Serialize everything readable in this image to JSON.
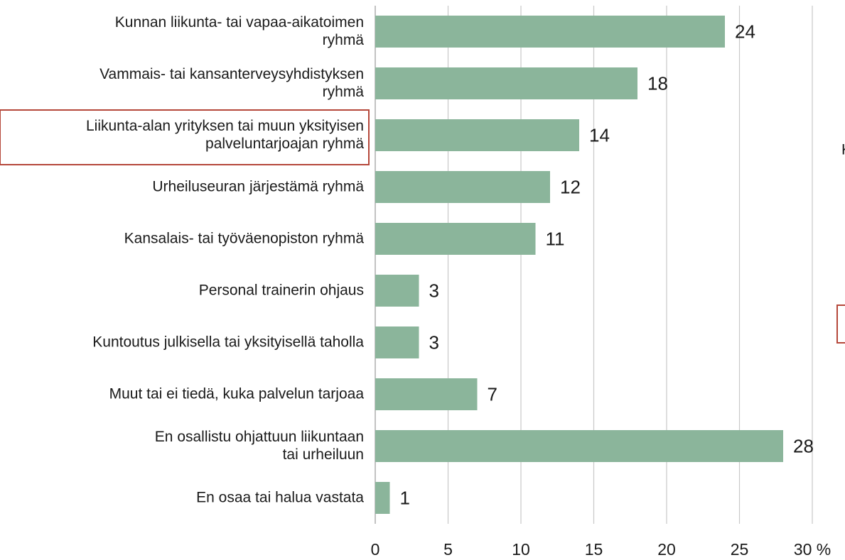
{
  "chart_data": {
    "type": "bar",
    "orientation": "horizontal",
    "categories": [
      "Kunnan liikunta- tai vapaa-aikatoimen\nryhmä",
      "Vammais- tai kansanterveysyhdistyksen\nryhmä",
      "Liikunta-alan yrityksen tai muun yksityisen\npalveluntarjoajan ryhmä",
      "Urheiluseuran järjestämä ryhmä",
      "Kansalais- tai työväenopiston ryhmä",
      "Personal trainerin ohjaus",
      "Kuntoutus julkisella tai yksityisellä taholla",
      "Muut tai ei tiedä, kuka palvelun tarjoaa",
      "En osallistu ohjattuun liikuntaan\ntai urheiluun",
      "En osaa tai halua vastata"
    ],
    "values": [
      24,
      18,
      14,
      12,
      11,
      3,
      3,
      7,
      28,
      1
    ],
    "color": "#8bb59b",
    "xlim": [
      0,
      30
    ],
    "xticks": [
      0,
      5,
      10,
      15,
      20,
      25,
      {
        "value": 30,
        "label": "30 %"
      }
    ],
    "grid": true,
    "cropped_text": "K"
  }
}
